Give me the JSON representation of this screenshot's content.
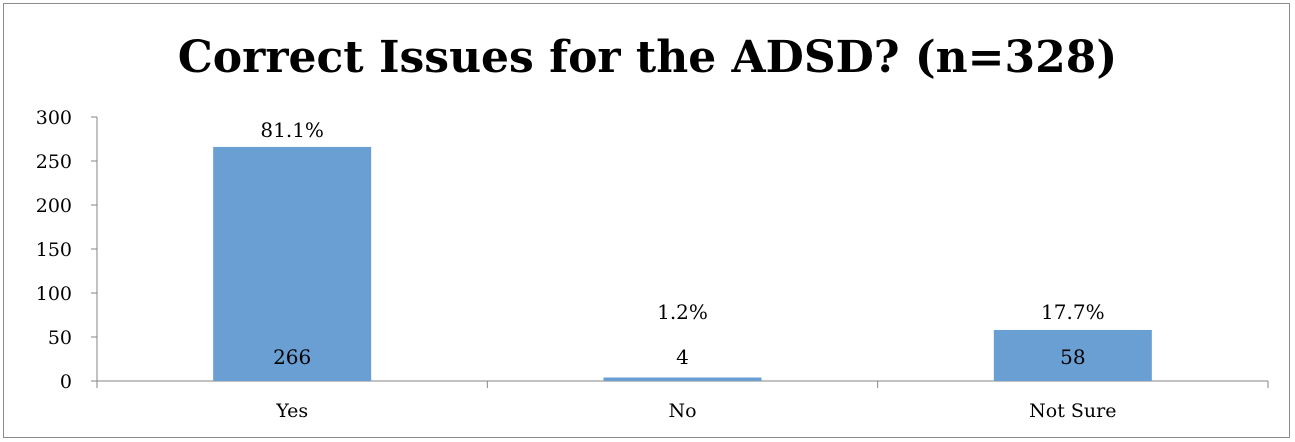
{
  "chart_data": {
    "type": "bar",
    "title": "Correct Issues for the ADSD? (n=328)",
    "categories": [
      "Yes",
      "No",
      "Not Sure"
    ],
    "values": [
      266,
      4,
      58
    ],
    "percent_labels": [
      "81.1%",
      "1.2%",
      "17.7%"
    ],
    "value_labels": [
      "266",
      "4",
      "58"
    ],
    "ylim": [
      0,
      300
    ],
    "yticks": [
      "0",
      "50",
      "100",
      "150",
      "200",
      "250",
      "300"
    ],
    "xlabel": "",
    "ylabel": "",
    "grid": false,
    "legend": "none",
    "bar_color": "#6a9fd3"
  }
}
